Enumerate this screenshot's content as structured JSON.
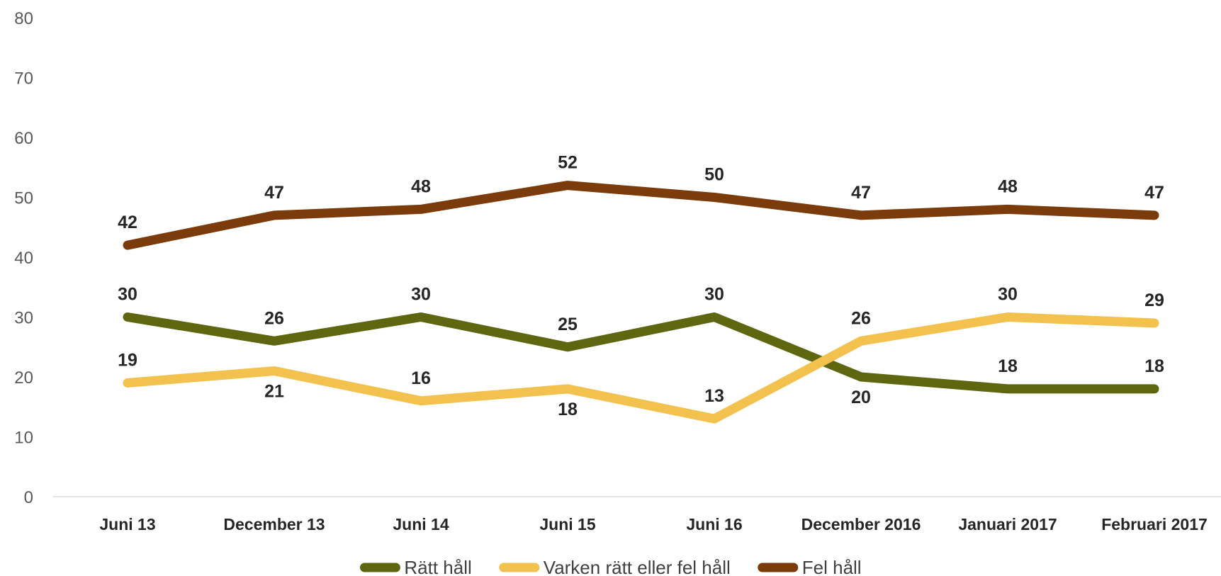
{
  "chart_data": {
    "type": "line",
    "title": "",
    "xlabel": "",
    "ylabel": "",
    "ylim": [
      0,
      80
    ],
    "yticks": [
      0,
      10,
      20,
      30,
      40,
      50,
      60,
      70,
      80
    ],
    "grid": false,
    "legend_position": "bottom",
    "categories": [
      "Juni 13",
      "December 13",
      "Juni 14",
      "Juni 15",
      "Juni 16",
      "December 2016",
      "Januari 2017",
      "Februari 2017"
    ],
    "series": [
      {
        "name": "Rätt håll",
        "color": "#5e6610",
        "values": [
          30,
          26,
          30,
          25,
          30,
          20,
          18,
          18
        ],
        "label_positions": [
          "above",
          "above",
          "above",
          "above",
          "above",
          "below",
          "above",
          "above"
        ]
      },
      {
        "name": "Varken rätt eller fel håll",
        "color": "#f2c14e",
        "values": [
          19,
          21,
          16,
          18,
          13,
          26,
          30,
          29
        ],
        "label_positions": [
          "above",
          "below",
          "above",
          "below",
          "above",
          "above",
          "above",
          "above"
        ]
      },
      {
        "name": "Fel håll",
        "color": "#7b3b0a",
        "values": [
          42,
          47,
          48,
          52,
          50,
          47,
          48,
          47
        ],
        "label_positions": [
          "above",
          "above",
          "above",
          "above",
          "above",
          "above",
          "above",
          "above"
        ]
      }
    ]
  }
}
